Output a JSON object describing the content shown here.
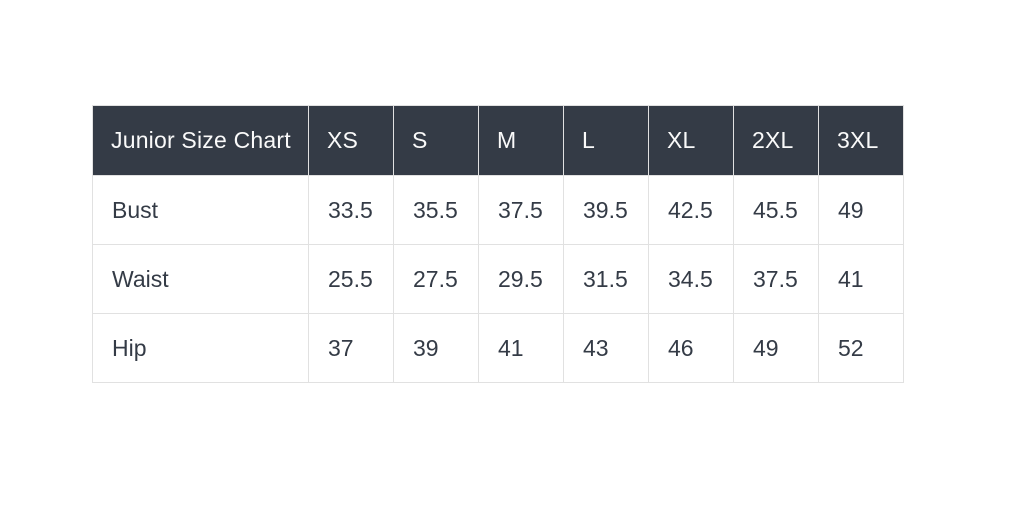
{
  "chart_data": {
    "type": "table",
    "title": "Junior Size Chart",
    "columns": [
      "XS",
      "S",
      "M",
      "L",
      "XL",
      "2XL",
      "3XL"
    ],
    "rows": [
      {
        "label": "Bust",
        "values": [
          "33.5",
          "35.5",
          "37.5",
          "39.5",
          "42.5",
          "45.5",
          "49"
        ]
      },
      {
        "label": "Waist",
        "values": [
          "25.5",
          "27.5",
          "29.5",
          "31.5",
          "34.5",
          "37.5",
          "41"
        ]
      },
      {
        "label": "Hip",
        "values": [
          "37",
          "39",
          "41",
          "43",
          "46",
          "49",
          "52"
        ]
      }
    ],
    "layout": {
      "header_position": "top-row",
      "first_column_role": "measurement-labels",
      "grid": "on"
    }
  },
  "colors": {
    "header_bg": "#343b46",
    "header_text": "#fafafa",
    "body_text": "#343b46",
    "border": "#e1e1e1",
    "page_bg": "#ffffff"
  }
}
